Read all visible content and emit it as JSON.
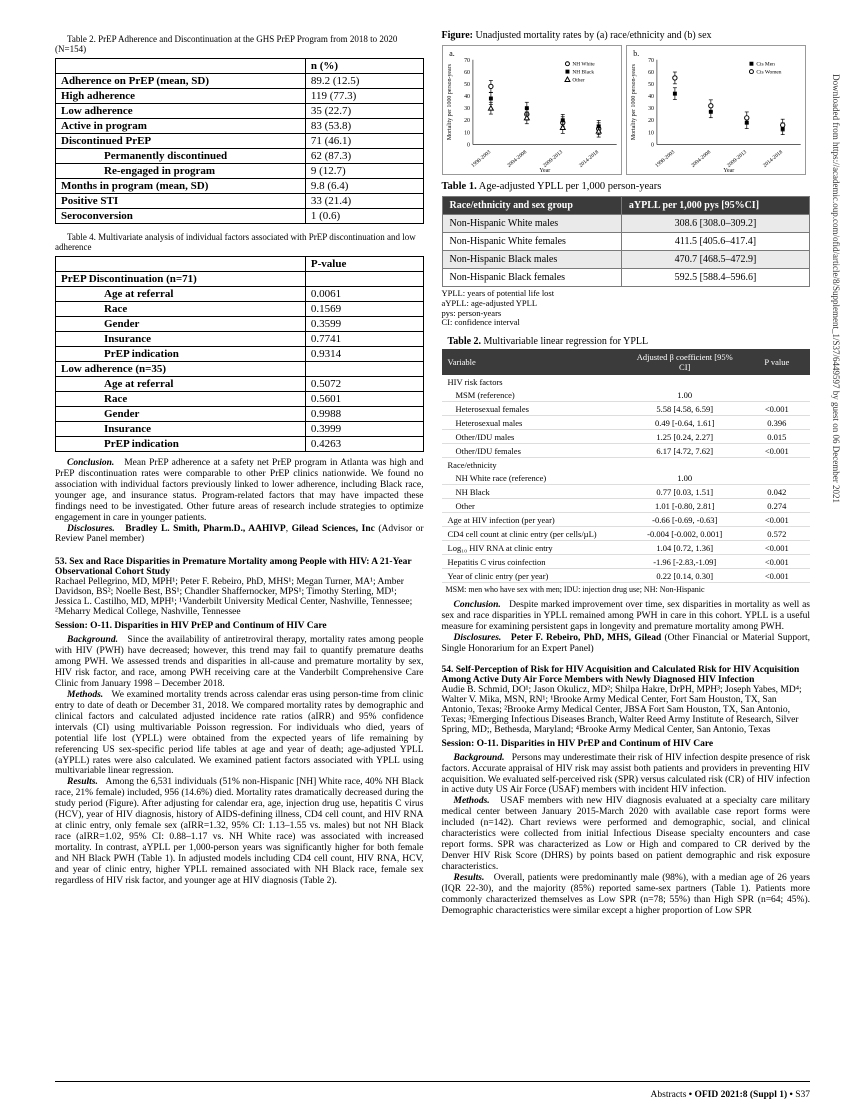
{
  "leftCol": {
    "table2Caption": "Table 2. PrEP Adherence and Discontinuation at the GHS PrEP Program from 2018 to 2020 (N=154)",
    "table2": {
      "header": [
        "",
        "n (%)"
      ],
      "rows": [
        {
          "label": "Adherence on PrEP (mean, SD)",
          "val": "89.2 (12.5)",
          "bold": true
        },
        {
          "label": "High adherence",
          "val": "119 (77.3)",
          "bold": true
        },
        {
          "label": "Low adherence",
          "val": "35 (22.7)",
          "bold": true
        },
        {
          "label": "Active in program",
          "val": "83 (53.8)",
          "bold": true
        },
        {
          "label": "Discontinued PrEP",
          "val": "71 (46.1)",
          "bold": true
        },
        {
          "label": "Permanently discontinued",
          "val": "62 (87.3)",
          "indent": 2
        },
        {
          "label": "Re-engaged in program",
          "val": "9 (12.7)",
          "indent": 2
        },
        {
          "label": "Months in program (mean, SD)",
          "val": "9.8 (6.4)",
          "bold": true
        },
        {
          "label": "Positive STI",
          "val": "33 (21.4)",
          "bold": true
        },
        {
          "label": "Seroconversion",
          "val": "1 (0.6)",
          "bold": true
        }
      ]
    },
    "table4Caption": "Table 4. Multivariate analysis of individual factors associated with PrEP discontinuation and low adherence",
    "table4": {
      "header": [
        "",
        "P-value"
      ],
      "rows": [
        {
          "label": "PrEP Discontinuation (n=71)",
          "bold": true
        },
        {
          "label": "Age at referral",
          "val": "0.0061",
          "indent": 2
        },
        {
          "label": "Race",
          "val": "0.1569",
          "indent": 2
        },
        {
          "label": "Gender",
          "val": "0.3599",
          "indent": 2
        },
        {
          "label": "Insurance",
          "val": "0.7741",
          "indent": 2
        },
        {
          "label": "PrEP indication",
          "val": "0.9314",
          "indent": 2
        },
        {
          "label": "Low adherence (n=35)",
          "bold": true
        },
        {
          "label": "Age at referral",
          "val": "0.5072",
          "indent": 2
        },
        {
          "label": "Race",
          "val": "0.5601",
          "indent": 2
        },
        {
          "label": "Gender",
          "val": "0.9988",
          "indent": 2
        },
        {
          "label": "Insurance",
          "val": "0.3999",
          "indent": 2
        },
        {
          "label": "PrEP indication",
          "val": "0.4263",
          "indent": 2
        }
      ]
    },
    "conclusion1": "Mean PrEP adherence at a safety net PrEP program in Atlanta was high and PrEP discontinuation rates were comparable to other PrEP clinics nationwide. We found no association with individual factors previously linked to lower adherence, including Black race, younger age, and insurance status. Program-related factors that may have impacted these findings need to be investigated. Other future areas of research include strategies to optimize engagement in care in younger patients.",
    "disclosures1Label": "Disclosures.",
    "disclosures1Text": "Bradley L. Smith, Pharm.D., AAHIVP",
    "disclosures1Company": "Gilead Sciences, Inc",
    "disclosures1Role": "(Advisor or Review Panel member)",
    "abstract53Title": "53. Sex and Race Disparities in Premature Mortality among People with HIV: A 21-Year Observational Cohort Study",
    "abstract53Authors": "Rachael Pellegrino, MD, MPH¹; Peter F. Rebeiro, PhD, MHS¹; Megan Turner, MA¹; Amber Davidson, BS²; Noelle Best, BS¹; Chandler Shaffernocker, MPS¹; Timothy Sterling, MD¹; Jessica L. Castilho, MD, MPH¹; ¹Vanderbilt University Medical Center, Nashville, Tennessee; ²Meharry Medical College, Nashville, Tennessee",
    "session53": "Session: O-11. Disparities in HIV PrEP and Continum of HIV Care",
    "background53": "Since the availability of antiretroviral therapy, mortality rates among people with HIV (PWH) have decreased; however, this trend may fail to quantify premature deaths among PWH. We assessed trends and disparities in all-cause and premature mortality by sex, HIV risk factor, and race, among PWH receiving care at the Vanderbilt Comprehensive Care Clinic from January 1998 – December 2018.",
    "methods53": "We examined mortality trends across calendar eras using person-time from clinic entry to date of death or December 31, 2018. We compared mortality rates by demographic and clinical factors and calculated adjusted incidence rate ratios (aIRR) and 95% confidence intervals (CI) using multivariable Poisson regression. For individuals who died, years of potential life lost (YPLL) were obtained from the expected years of life remaining by referencing US sex-specific period life tables at age and year of death; age-adjusted YPLL (aYPLL) rates were also calculated. We examined patient factors associated with YPLL using multivariable linear regression.",
    "results53": "Among the 6,531 individuals (51% non-Hispanic [NH] White race, 40% NH Black race, 21% female) included, 956 (14.6%) died. Mortality rates dramatically decreased during the study period (Figure). After adjusting for calendar era, age, injection drug use, hepatitis C virus (HCV), year of HIV diagnosis, history of AIDS-defining illness, CD4 cell count, and HIV RNA at clinic entry, only female sex (aIRR=1.32, 95% CI: 1.13–1.55 vs. males) but not NH Black race (aIRR=1.02, 95% CI: 0.88–1.17 vs. NH White race) was associated with increased mortality. In contrast, aYPLL per 1,000-person years was significantly higher for both female and NH Black PWH (Table 1). In adjusted models including CD4 cell count, HIV RNA, HCV, and year of clinic entry, higher YPLL remained associated with NH Black race, female sex regardless of HIV risk factor, and younger age at HIV diagnosis (Table 2)."
  },
  "rightCol": {
    "figureTitle": "Figure:",
    "figureDesc": "Unadjusted mortality rates by (a) race/ethnicity and (b) sex",
    "chartA": {
      "label": "a.",
      "ylabel": "Mortality per 1000 person-\nyears",
      "ylim": [
        0,
        70
      ],
      "yticks": [
        0,
        10,
        20,
        30,
        40,
        50,
        60,
        70
      ],
      "xlabels": [
        "1998-2003",
        "2004-2008",
        "2009-2013",
        "2014-2018"
      ],
      "series": [
        {
          "name": "NH White",
          "marker": "circle",
          "color": "#000",
          "values": [
            48,
            25,
            18,
            13
          ]
        },
        {
          "name": "NH Black",
          "marker": "square",
          "color": "#000",
          "values": [
            38,
            30,
            20,
            15
          ]
        },
        {
          "name": "Other",
          "marker": "triangle",
          "color": "#000",
          "values": [
            30,
            22,
            14,
            11
          ]
        }
      ]
    },
    "chartB": {
      "label": "b.",
      "ylabel": "Mortality per 1000 person-\nyears",
      "ylim": [
        0,
        70
      ],
      "yticks": [
        0,
        10,
        20,
        30,
        40,
        50,
        60,
        70
      ],
      "xlabels": [
        "1998-2003",
        "2004-2008",
        "2009-2013",
        "2014-2018"
      ],
      "series": [
        {
          "name": "Cis Men",
          "marker": "square",
          "color": "#000",
          "values": [
            42,
            27,
            18,
            13
          ]
        },
        {
          "name": "Cis Women",
          "marker": "circle",
          "color": "#000",
          "values": [
            55,
            32,
            22,
            16
          ]
        }
      ]
    },
    "table1Title": "Table 1.",
    "table1Desc": "Age-adjusted YPLL per 1,000 person-years",
    "table1": {
      "header": [
        "Race/ethnicity and sex group",
        "aYPLL per 1,000 pys [95%CI]"
      ],
      "rows": [
        [
          "Non-Hispanic White males",
          "308.6 [308.0–309.2]"
        ],
        [
          "Non-Hispanic White females",
          "411.5 [405.6–417.4]"
        ],
        [
          "Non-Hispanic Black males",
          "470.7 [468.5–472.9]"
        ],
        [
          "Non-Hispanic Black females",
          "592.5 [588.4–596.6]"
        ]
      ]
    },
    "t1foot": [
      "YPLL: years of potential life lost",
      "aYPLL: age-adjusted YPLL",
      "pys: person-years",
      "CI: confidence interval"
    ],
    "table2Title": "Table 2.",
    "table2Desc": "Multivariable linear regression for YPLL",
    "table2": {
      "header": [
        "Variable",
        "Adjusted β coefficient [95% CI]",
        "P value"
      ],
      "rows": [
        {
          "label": "HIV risk factors",
          "section": true
        },
        {
          "label": "MSM (reference)",
          "b": "1.00",
          "p": "",
          "indent": true
        },
        {
          "label": "Heterosexual females",
          "b": "5.58 [4.58, 6.59]",
          "p": "<0.001",
          "indent": true
        },
        {
          "label": "Heterosexual males",
          "b": "0.49 [-0.64, 1.61]",
          "p": "0.396",
          "indent": true
        },
        {
          "label": "Other/IDU males",
          "b": "1.25 [0.24, 2.27]",
          "p": "0.015",
          "indent": true
        },
        {
          "label": "Other/IDU females",
          "b": "6.17 [4.72, 7.62]",
          "p": "<0.001",
          "indent": true
        },
        {
          "label": "Race/ethnicity",
          "section": true
        },
        {
          "label": "NH White race (reference)",
          "b": "1.00",
          "p": "",
          "indent": true
        },
        {
          "label": "NH Black",
          "b": "0.77 [0.03, 1.51]",
          "p": "0.042",
          "indent": true
        },
        {
          "label": "Other",
          "b": "1.01 [-0.80, 2.81]",
          "p": "0.274",
          "indent": true
        },
        {
          "label": "Age at HIV infection (per year)",
          "b": "-0.66 [-0.69, -0.63]",
          "p": "<0.001"
        },
        {
          "label": "CD4 cell count at clinic entry (per cells/µL)",
          "b": "-0.004 [-0.002, 0.001]",
          "p": "0.572"
        },
        {
          "label": "Log₁₀ HIV RNA at clinic entry",
          "b": "1.04 [0.72, 1.36]",
          "p": "<0.001"
        },
        {
          "label": "Hepatitis C virus coinfection",
          "b": "-1.96 [-2.83,-1.09]",
          "p": "<0.001"
        },
        {
          "label": "Year of clinic entry (per year)",
          "b": "0.22 [0.14, 0.30]",
          "p": "<0.001"
        }
      ]
    },
    "t2foot": "MSM: men who have sex with men; IDU: injection drug use; NH: Non-Hispanic",
    "conclusion2": "Despite marked improvement over time, sex disparities in mortality as well as sex and race disparities in YPLL remained among PWH in care in this cohort. YPLL is a useful measure for examining persistent gaps in longevity and premature mortality among PWH.",
    "disclosures2Label": "Disclosures.",
    "disclosures2Text": "Peter F. Rebeiro, PhD, MHS, Gilead",
    "disclosures2Role": "(Other Financial or Material Support, Single Honorarium for an Expert Panel)",
    "abstract54Title": "54. Self-Perception of Risk for HIV Acquisition and Calculated Risk for HIV Acquisition Among Active Duty Air Force Members with Newly Diagnosed HIV Infection",
    "abstract54Authors": "Audie B. Schmid, DO¹; Jason Okulicz, MD²; Shilpa Hakre, DrPH, MPH³; Joseph Yabes, MD⁴; Walter V. Mika, MSN, RN¹; ¹Brooke Army Medical Center, Fort Sam Houston, TX, San Antonio, Texas; ²Brooke Army Medical Center, JBSA Fort Sam Houston, TX, San Antonio, Texas; ³Emerging Infectious Diseases Branch, Walter Reed Army Institute of Research, Silver Spring, MD;, Bethesda, Maryland; ⁴Brooke Army Medical Center, San Antonio, Texas",
    "session54": "Session: O-11. Disparities in HIV PrEP and Continum of HIV Care",
    "background54": "Persons may underestimate their risk of HIV infection despite presence of risk factors. Accurate appraisal of HIV risk may assist both patients and providers in preventing HIV acquisition. We evaluated self-perceived risk (SPR) versus calculated risk (CR) of HIV infection in active duty US Air Force (USAF) members with incident HIV infection.",
    "methods54": "USAF members with new HIV diagnosis evaluated at a specialty care military medical center between January 2015-March 2020 with available case report forms were included (n=142). Chart reviews were performed and demographic, social, and clinical characteristics were collected from initial Infectious Disease specialty encounters and case report forms. SPR was characterized as Low or High and compared to CR derived by the Denver HIV Risk Score (DHRS) by points based on patient demographic and risk exposure characteristics.",
    "results54": "Overall, patients were predominantly male (98%), with a median age of 26 years (IQR 22-30), and the majority (85%) reported same-sex partners (Table 1). Patients more commonly characterized themselves as Low SPR (n=78; 55%) than High SPR (n=64; 45%). Demographic characteristics were similar except a higher proportion of Low SPR"
  },
  "sidebar": "Downloaded from https://academic.oup.com/ofid/article/8/Supplement_1/S37/6449597 by guest on 06 December 2021",
  "footer": {
    "abstracts": "Abstracts",
    "bullet": "•",
    "journal": "OFID 2021:8 (Suppl 1)",
    "page": "S37"
  }
}
